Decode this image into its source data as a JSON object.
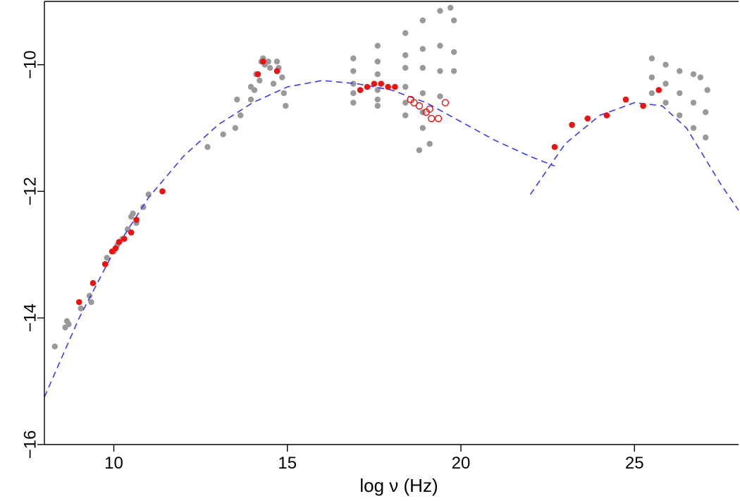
{
  "chart_data": {
    "type": "scatter",
    "title": "",
    "xlabel": "log ν (Hz)",
    "ylabel": "",
    "xlim": [
      8.0,
      28.0
    ],
    "ylim": [
      -16.0,
      -9.0
    ],
    "xticks": [
      10,
      15,
      20,
      25
    ],
    "yticks": [
      -10,
      -12,
      -14,
      -16
    ],
    "xtick_labels": [
      "10",
      "15",
      "20",
      "25"
    ],
    "ytick_labels": [
      "−10",
      "−12",
      "−14",
      "−16"
    ],
    "grid": false,
    "legend": "none",
    "colors": {
      "archival": "#999999",
      "simultaneous": "#ee1111",
      "model": "#3a3af0",
      "axis": "#000000"
    },
    "series": [
      {
        "style": "gray-dots",
        "points": [
          [
            8.3,
            -14.45
          ],
          [
            8.6,
            -14.15
          ],
          [
            8.65,
            -14.05
          ],
          [
            8.7,
            -14.1
          ],
          [
            9.05,
            -13.85
          ],
          [
            9.3,
            -13.65
          ],
          [
            9.35,
            -13.75
          ],
          [
            9.8,
            -13.05
          ],
          [
            10.0,
            -12.95
          ],
          [
            10.1,
            -12.85
          ],
          [
            10.25,
            -12.75
          ],
          [
            10.4,
            -12.6
          ],
          [
            10.5,
            -12.4
          ],
          [
            10.55,
            -12.35
          ],
          [
            10.65,
            -12.5
          ],
          [
            10.85,
            -12.25
          ],
          [
            11.0,
            -12.05
          ],
          [
            12.7,
            -11.3
          ],
          [
            13.15,
            -11.1
          ],
          [
            13.5,
            -11.0
          ],
          [
            13.55,
            -10.55
          ],
          [
            13.65,
            -10.8
          ],
          [
            13.95,
            -10.55
          ],
          [
            13.95,
            -10.35
          ],
          [
            14.05,
            -10.4
          ],
          [
            14.1,
            -10.15
          ],
          [
            14.2,
            -10.25
          ],
          [
            14.25,
            -9.95
          ],
          [
            14.3,
            -9.9
          ],
          [
            14.35,
            -10.0
          ],
          [
            14.45,
            -9.95
          ],
          [
            14.5,
            -10.05
          ],
          [
            14.6,
            -10.3
          ],
          [
            14.7,
            -9.95
          ],
          [
            14.75,
            -10.05
          ],
          [
            14.85,
            -10.2
          ],
          [
            14.9,
            -10.45
          ],
          [
            14.95,
            -10.65
          ],
          [
            16.9,
            -10.1
          ],
          [
            16.9,
            -10.3
          ],
          [
            16.9,
            -10.45
          ],
          [
            16.9,
            -10.6
          ],
          [
            16.9,
            -9.9
          ],
          [
            17.6,
            -9.7
          ],
          [
            18.4,
            -9.5
          ],
          [
            18.9,
            -9.3
          ],
          [
            19.4,
            -9.15
          ],
          [
            19.7,
            -9.1
          ],
          [
            17.6,
            -9.95
          ],
          [
            18.4,
            -9.85
          ],
          [
            18.9,
            -9.75
          ],
          [
            19.4,
            -9.7
          ],
          [
            17.6,
            -10.15
          ],
          [
            18.4,
            -10.05
          ],
          [
            18.9,
            -10.05
          ],
          [
            19.4,
            -10.1
          ],
          [
            17.6,
            -10.4
          ],
          [
            18.4,
            -10.35
          ],
          [
            18.9,
            -10.45
          ],
          [
            19.4,
            -10.5
          ],
          [
            17.6,
            -10.55
          ],
          [
            18.4,
            -10.6
          ],
          [
            18.9,
            -10.75
          ],
          [
            17.6,
            -10.65
          ],
          [
            18.4,
            -10.8
          ],
          [
            18.9,
            -11.0
          ],
          [
            19.8,
            -9.3
          ],
          [
            19.8,
            -9.8
          ],
          [
            19.8,
            -10.1
          ],
          [
            18.8,
            -11.35
          ],
          [
            19.1,
            -11.25
          ],
          [
            25.5,
            -9.9
          ],
          [
            25.9,
            -10.0
          ],
          [
            26.3,
            -10.1
          ],
          [
            26.7,
            -10.15
          ],
          [
            26.9,
            -10.2
          ],
          [
            25.5,
            -10.2
          ],
          [
            25.9,
            -10.3
          ],
          [
            26.3,
            -10.45
          ],
          [
            26.7,
            -10.6
          ],
          [
            27.05,
            -10.75
          ],
          [
            25.5,
            -10.45
          ],
          [
            25.9,
            -10.6
          ],
          [
            26.3,
            -10.8
          ],
          [
            26.7,
            -11.0
          ],
          [
            27.05,
            -11.15
          ],
          [
            27.1,
            -10.4
          ]
        ]
      },
      {
        "style": "red-dots",
        "points": [
          [
            9.0,
            -13.75
          ],
          [
            9.4,
            -13.45
          ],
          [
            9.75,
            -13.15
          ],
          [
            9.95,
            -12.95
          ],
          [
            10.05,
            -12.9
          ],
          [
            10.15,
            -12.8
          ],
          [
            10.3,
            -12.75
          ],
          [
            10.5,
            -12.65
          ],
          [
            10.65,
            -12.45
          ],
          [
            11.4,
            -12.0
          ],
          [
            14.15,
            -10.15
          ],
          [
            14.3,
            -9.95
          ],
          [
            14.7,
            -10.1
          ],
          [
            17.1,
            -10.4
          ],
          [
            17.3,
            -10.35
          ],
          [
            17.5,
            -10.3
          ],
          [
            17.7,
            -10.3
          ],
          [
            17.9,
            -10.35
          ],
          [
            18.1,
            -10.35
          ],
          [
            22.7,
            -11.3
          ],
          [
            23.2,
            -10.95
          ],
          [
            23.65,
            -10.85
          ],
          [
            24.2,
            -10.8
          ],
          [
            24.75,
            -10.55
          ],
          [
            25.25,
            -10.65
          ],
          [
            25.7,
            -10.4
          ]
        ]
      },
      {
        "style": "red-open-circles",
        "points": [
          [
            18.55,
            -10.55
          ],
          [
            18.65,
            -10.6
          ],
          [
            18.8,
            -10.65
          ],
          [
            19.0,
            -10.75
          ],
          [
            19.1,
            -10.7
          ],
          [
            19.15,
            -10.85
          ],
          [
            19.35,
            -10.85
          ],
          [
            19.55,
            -10.6
          ]
        ]
      },
      {
        "style": "dashed-model",
        "points": [
          [
            8.0,
            -15.25
          ],
          [
            9.0,
            -14.0
          ],
          [
            10.0,
            -12.95
          ],
          [
            11.0,
            -12.1
          ],
          [
            12.0,
            -11.45
          ],
          [
            13.0,
            -10.95
          ],
          [
            14.0,
            -10.6
          ],
          [
            15.0,
            -10.35
          ],
          [
            16.0,
            -10.25
          ],
          [
            17.0,
            -10.3
          ],
          [
            18.0,
            -10.4
          ],
          [
            19.0,
            -10.6
          ],
          [
            20.0,
            -10.9
          ],
          [
            21.0,
            -11.2
          ],
          [
            22.0,
            -11.45
          ],
          [
            22.7,
            -11.6
          ],
          [
            22.0,
            -12.05
          ],
          [
            23.0,
            -11.25
          ],
          [
            24.0,
            -10.8
          ],
          [
            25.0,
            -10.6
          ],
          [
            25.8,
            -10.65
          ],
          [
            26.5,
            -11.0
          ],
          [
            27.5,
            -11.9
          ],
          [
            28.0,
            -12.3
          ]
        ]
      }
    ]
  }
}
